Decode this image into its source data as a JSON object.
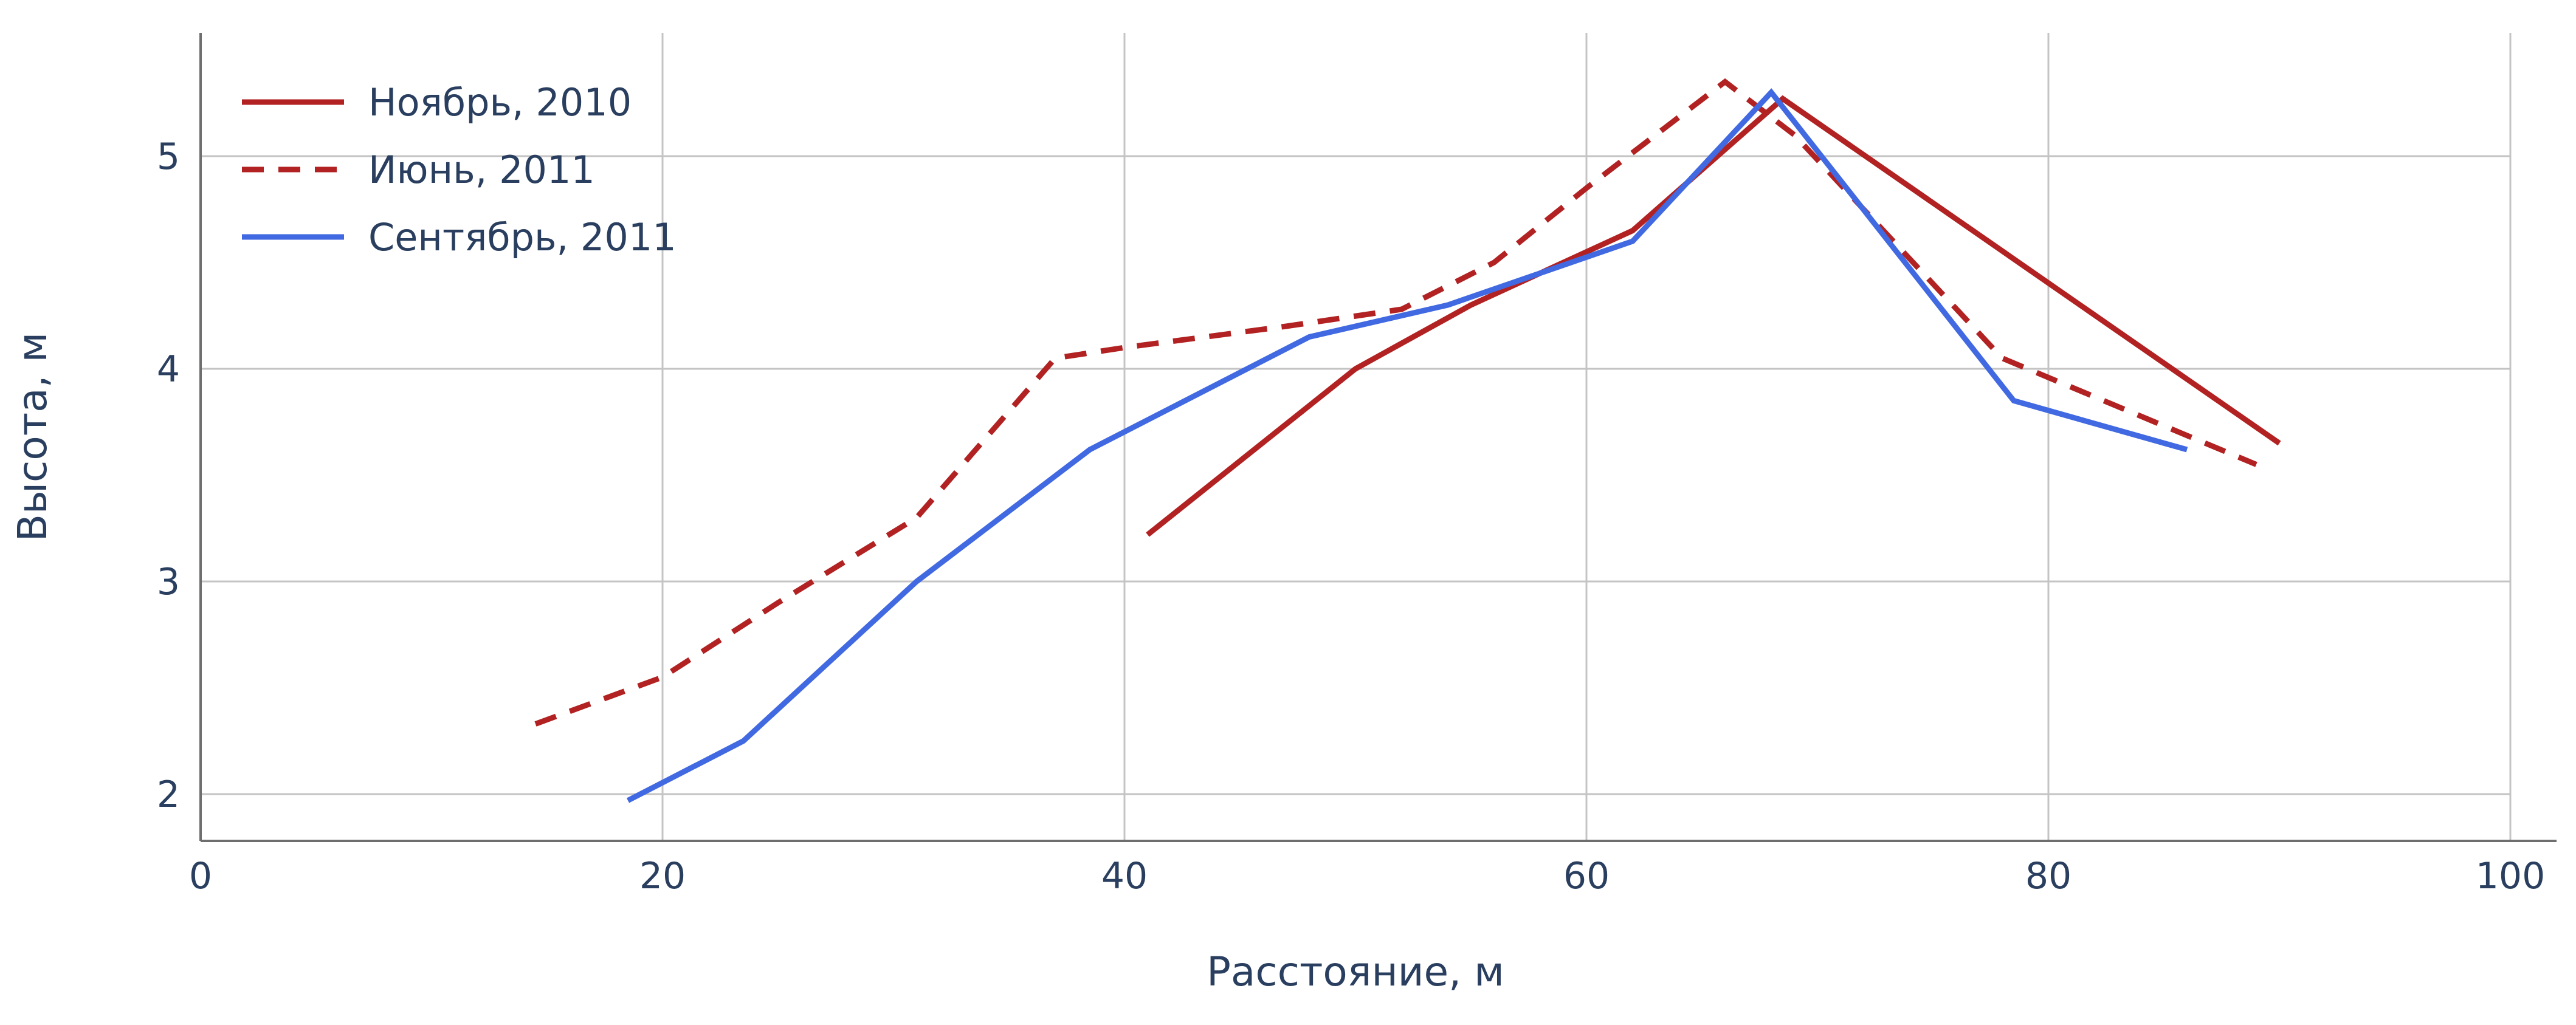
{
  "chart_data": {
    "type": "line",
    "title": "",
    "xlabel": "Расстояние, м",
    "ylabel": "Высота, м",
    "xlim": [
      0,
      100
    ],
    "ylim": [
      1.78,
      5.58
    ],
    "xticks": [
      0,
      20,
      40,
      60,
      80,
      100
    ],
    "yticks": [
      2,
      3,
      4,
      5
    ],
    "grid": true,
    "legend_position": "top-left",
    "series": [
      {
        "name": "Ноябрь, 2010",
        "color": "#B22222",
        "dash": "solid",
        "x": [
          41,
          50,
          55,
          62,
          68.5,
          90
        ],
        "y": [
          3.22,
          4.0,
          4.3,
          4.65,
          5.27,
          3.65
        ]
      },
      {
        "name": "Июнь, 2011",
        "color": "#B22222",
        "dash": "dashed",
        "x": [
          14.5,
          20,
          25,
          31,
          37,
          40,
          47,
          52,
          56,
          60,
          66,
          69,
          78,
          89
        ],
        "y": [
          2.33,
          2.55,
          2.9,
          3.3,
          4.05,
          4.1,
          4.2,
          4.28,
          4.5,
          4.85,
          5.35,
          5.1,
          4.05,
          3.55
        ]
      },
      {
        "name": "Сентябрь, 2011",
        "color": "#4169E1",
        "dash": "solid",
        "x": [
          18.5,
          23.5,
          31,
          38.5,
          48,
          54,
          62,
          68,
          78.5,
          86
        ],
        "y": [
          1.97,
          2.25,
          3.0,
          3.62,
          4.15,
          4.3,
          4.6,
          5.3,
          3.85,
          3.62
        ]
      }
    ],
    "style": {
      "grid_color": "#c4c4c4",
      "spine_color": "#6e6e6e",
      "text_color": "#2a3f5f",
      "background": "#ffffff",
      "line_width": 9,
      "dash_pattern": "36 24"
    }
  }
}
